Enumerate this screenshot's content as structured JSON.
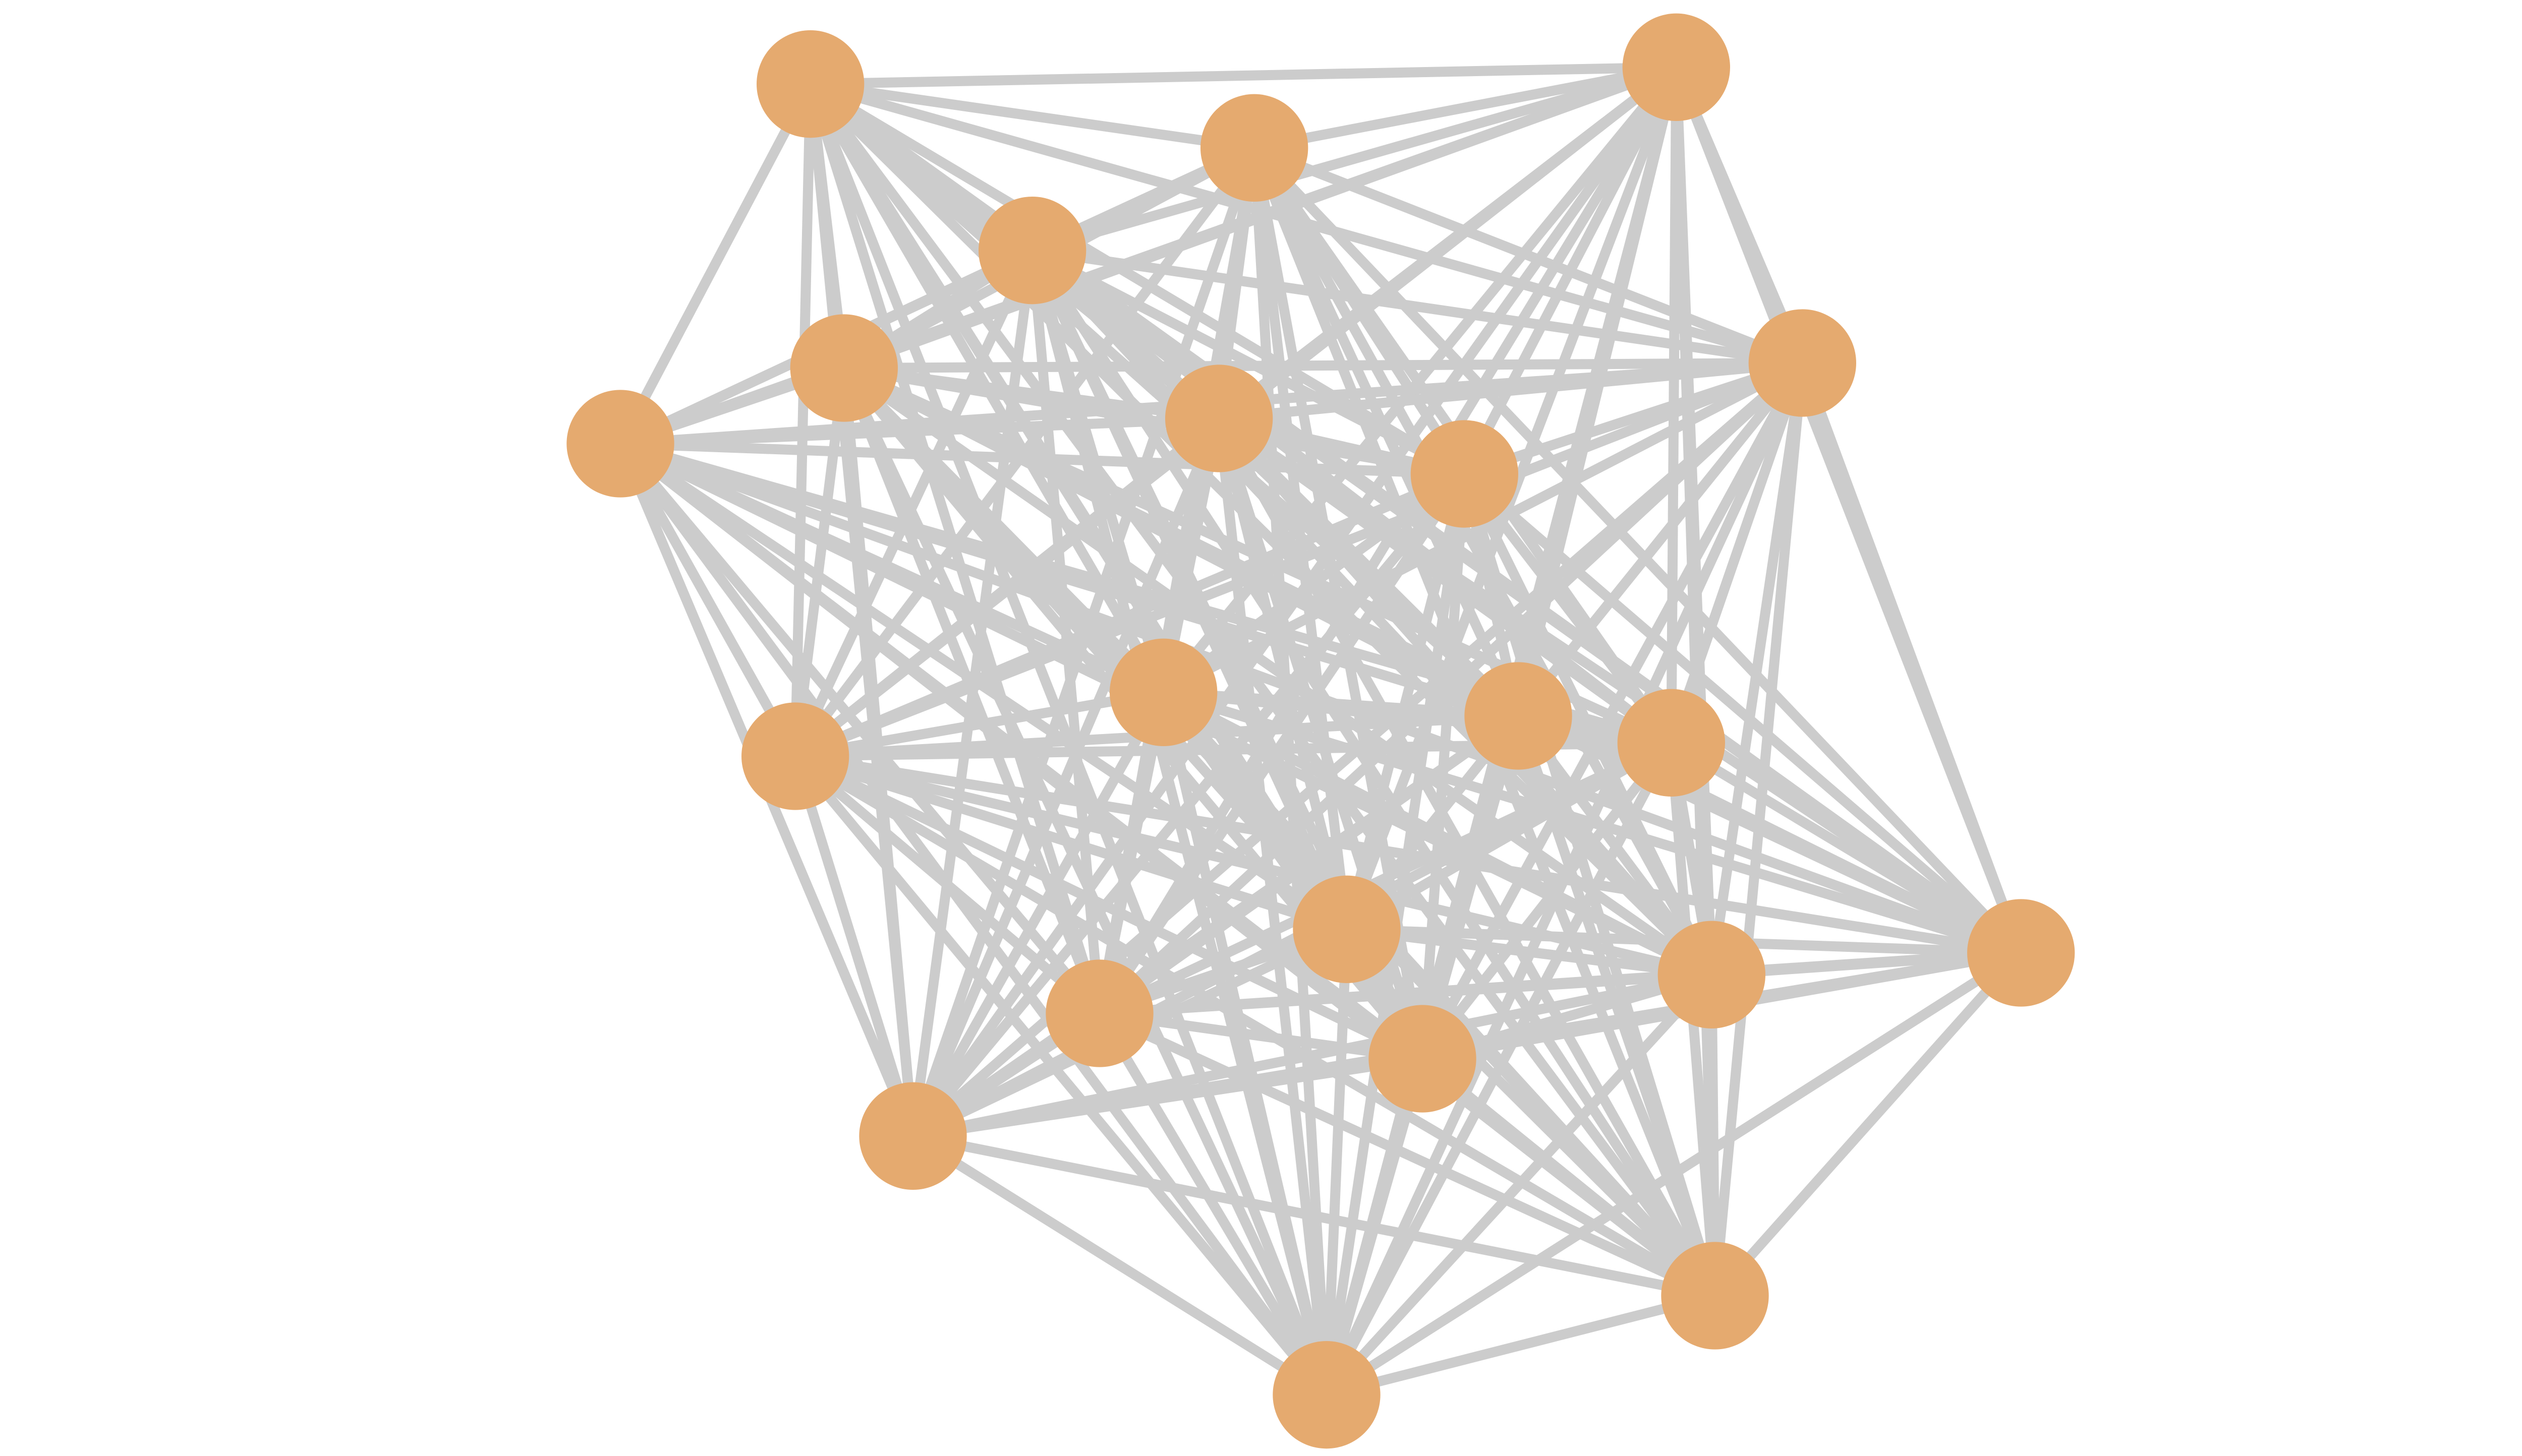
{
  "diagram": {
    "type": "network-graph",
    "layout": "force-directed",
    "node_count": 21,
    "connectivity": "complete",
    "colors": {
      "background": "#ffffff",
      "node_fill": "#e5aa6f",
      "edge_stroke": "#cccccc"
    }
  }
}
